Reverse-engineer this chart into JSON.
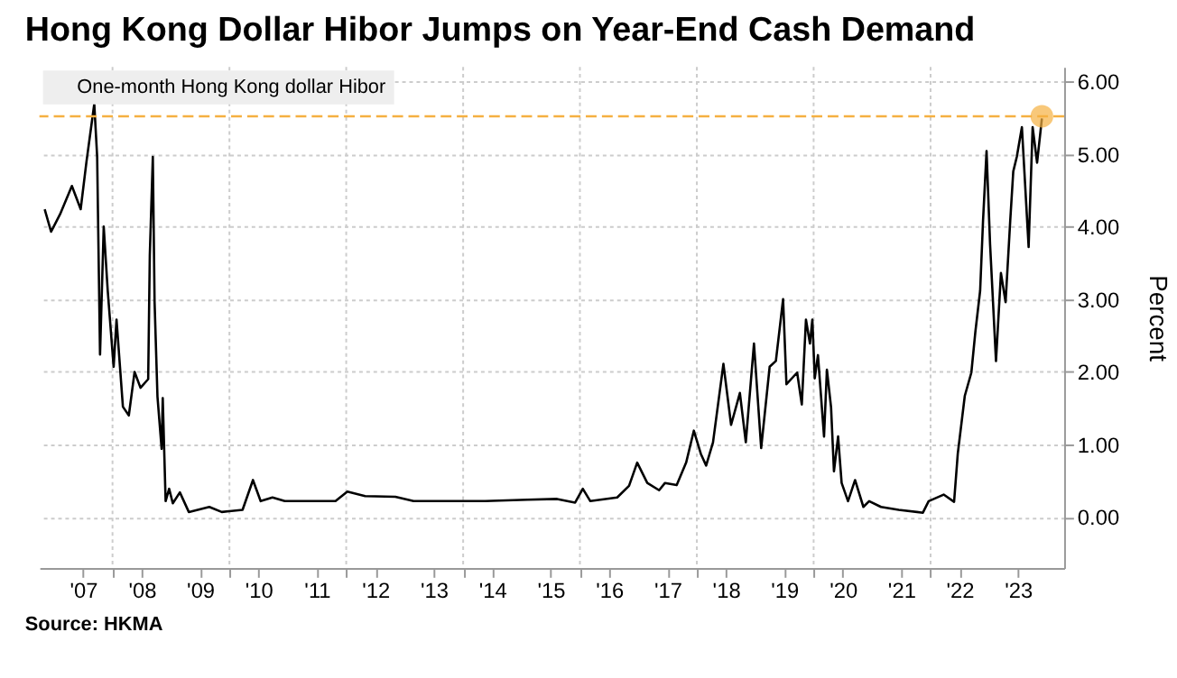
{
  "chart_data": {
    "type": "line",
    "title": "Hong Kong Dollar Hibor Jumps on Year-End Cash Demand",
    "ylabel": "Percent",
    "x": [
      "2006-11-03",
      "2006-12-13",
      "2007-02-07",
      "2007-04-22",
      "2007-06-16",
      "2007-07-22",
      "2007-09-09",
      "2007-09-27",
      "2007-10-15",
      "2007-11-07",
      "2007-12-02",
      "2008-01-08",
      "2008-01-26",
      "2008-03-06",
      "2008-04-12",
      "2008-05-18",
      "2008-06-24",
      "2008-08-11",
      "2008-08-21",
      "2008-09-09",
      "2008-09-20",
      "2008-10-08",
      "2008-11-03",
      "2008-11-10",
      "2008-11-28",
      "2008-12-20",
      "2009-01-12",
      "2009-02-25",
      "2009-04-22",
      "2009-08-28",
      "2009-11-14",
      "2010-03-24",
      "2010-05-28",
      "2010-07-15",
      "2010-09-27",
      "2010-12-13",
      "2011-03-13",
      "2011-10-26",
      "2012-01-08",
      "2012-04-28",
      "2012-11-03",
      "2013-02-25",
      "2014-05-18",
      "2015-02-07",
      "2015-08-11",
      "2015-12-02",
      "2016-01-19",
      "2016-03-06",
      "2016-08-21",
      "2016-11-03",
      "2016-12-24",
      "2017-02-25",
      "2017-05-10",
      "2017-06-16",
      "2017-08-28",
      "2017-10-26",
      "2017-12-13",
      "2018-01-26",
      "2018-02-28",
      "2018-04-12",
      "2018-06-16",
      "2018-08-03",
      "2018-09-27",
      "2018-11-03",
      "2018-12-24",
      "2019-02-07",
      "2019-04-01",
      "2019-05-10",
      "2019-06-24",
      "2019-07-15",
      "2019-09-20",
      "2019-10-19",
      "2019-11-14",
      "2019-12-09",
      "2019-12-24",
      "2020-01-08",
      "2020-01-28",
      "2020-03-06",
      "2020-03-24",
      "2020-04-19",
      "2020-05-07",
      "2020-06-02",
      "2020-06-24",
      "2020-08-03",
      "2020-09-16",
      "2020-11-07",
      "2020-12-13",
      "2021-02-25",
      "2021-06-16",
      "2021-11-14",
      "2021-12-20",
      "2022-03-24",
      "2022-05-28",
      "2022-06-20",
      "2022-08-03",
      "2022-09-13",
      "2022-10-08",
      "2022-11-07",
      "2022-11-25",
      "2022-12-17",
      "2023-01-08",
      "2023-02-14",
      "2023-03-17",
      "2023-04-15",
      "2023-05-14",
      "2023-06-02",
      "2023-06-24",
      "2023-07-26",
      "2023-09-06",
      "2023-10-01",
      "2023-10-29",
      "2023-11-28"
    ],
    "series": [
      {
        "name": "One-month Hong Kong dollar Hibor",
        "color": "#000000",
        "values": [
          4.24,
          3.93,
          4.17,
          4.56,
          4.24,
          4.89,
          5.69,
          4.96,
          2.24,
          4.0,
          3.12,
          2.07,
          2.72,
          1.52,
          1.4,
          2.0,
          1.78,
          1.9,
          3.6,
          4.96,
          2.96,
          1.66,
          0.94,
          1.64,
          0.22,
          0.39,
          0.19,
          0.34,
          0.07,
          0.14,
          0.07,
          0.1,
          0.51,
          0.22,
          0.27,
          0.22,
          0.22,
          0.22,
          0.35,
          0.29,
          0.28,
          0.22,
          0.22,
          0.24,
          0.25,
          0.2,
          0.39,
          0.22,
          0.27,
          0.43,
          0.75,
          0.47,
          0.37,
          0.47,
          0.44,
          0.75,
          1.19,
          0.87,
          0.71,
          1.03,
          2.11,
          1.27,
          1.71,
          1.03,
          2.39,
          0.95,
          2.07,
          2.15,
          3.0,
          1.83,
          1.99,
          1.55,
          2.72,
          2.39,
          2.72,
          1.91,
          2.23,
          1.11,
          2.03,
          1.51,
          0.63,
          1.11,
          0.47,
          0.22,
          0.51,
          0.14,
          0.22,
          0.14,
          0.1,
          0.06,
          0.22,
          0.31,
          0.21,
          0.87,
          1.67,
          1.99,
          2.55,
          3.12,
          4.08,
          5.04,
          3.76,
          2.15,
          3.36,
          2.96,
          4.08,
          4.76,
          4.96,
          5.37,
          3.72,
          5.37,
          4.88,
          5.49
        ]
      },
      {
        "type": "scatter",
        "color": "#f5b041",
        "x": [
          "2023-11-28"
        ],
        "values": [
          5.52
        ]
      }
    ],
    "xlim": [
      "2006-10-01",
      "2024-04-15"
    ],
    "xticks": [
      {
        "value": "2007-07-01",
        "label": "'07"
      },
      {
        "value": "2008-01-01",
        "label": null
      },
      {
        "value": "2008-07-01",
        "label": "'08"
      },
      {
        "value": "2009-07-01",
        "label": "'09"
      },
      {
        "value": "2010-01-01",
        "label": null
      },
      {
        "value": "2010-07-01",
        "label": "'10"
      },
      {
        "value": "2011-07-01",
        "label": "'11"
      },
      {
        "value": "2012-01-01",
        "label": null
      },
      {
        "value": "2012-07-01",
        "label": "'12"
      },
      {
        "value": "2013-07-01",
        "label": "'13"
      },
      {
        "value": "2014-01-01",
        "label": null
      },
      {
        "value": "2014-07-01",
        "label": "'14"
      },
      {
        "value": "2015-07-01",
        "label": "'15"
      },
      {
        "value": "2016-01-01",
        "label": null
      },
      {
        "value": "2016-07-01",
        "label": "'16"
      },
      {
        "value": "2017-07-01",
        "label": "'17"
      },
      {
        "value": "2018-01-01",
        "label": null
      },
      {
        "value": "2018-07-01",
        "label": "'18"
      },
      {
        "value": "2019-07-01",
        "label": "'19"
      },
      {
        "value": "2020-01-01",
        "label": null
      },
      {
        "value": "2020-07-01",
        "label": "'20"
      },
      {
        "value": "2021-07-01",
        "label": "'21"
      },
      {
        "value": "2022-01-01",
        "label": null
      },
      {
        "value": "2022-07-01",
        "label": "'22"
      },
      {
        "value": "2023-07-01",
        "label": "'23"
      }
    ],
    "ylim": [
      -0.7,
      6.2
    ],
    "yticks": [
      {
        "value": 0,
        "label": "0.00"
      },
      {
        "value": 1,
        "label": "1.00"
      },
      {
        "value": 2,
        "label": "2.00"
      },
      {
        "value": 3,
        "label": "3.00"
      },
      {
        "value": 4,
        "label": "4.00"
      },
      {
        "value": 5,
        "label": "5.00"
      },
      {
        "value": 6,
        "label": "6.00"
      }
    ],
    "ref_lines": [
      {
        "axis": "y",
        "value": 5.52,
        "color": "#f5b041",
        "line_style": "dashed"
      }
    ],
    "grid": true,
    "legend": "top left",
    "annotations": [
      "Source: HKMA"
    ]
  }
}
